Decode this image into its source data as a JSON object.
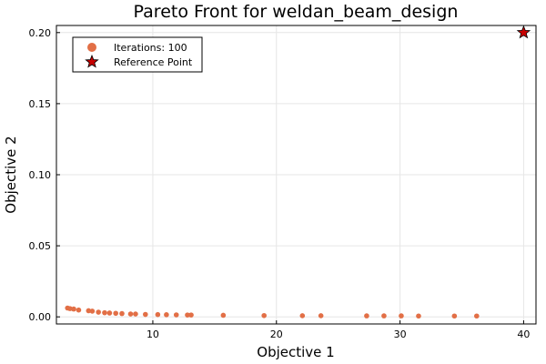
{
  "chart_data": {
    "type": "scatter",
    "title": "Pareto Front for weldan_beam_design",
    "xlabel": "Objective 1",
    "ylabel": "Objective 2",
    "xlim": [
      2.2,
      41.0
    ],
    "ylim": [
      -0.005,
      0.205
    ],
    "xticks": [
      10,
      20,
      30,
      40
    ],
    "xtick_labels": [
      "10",
      "20",
      "30",
      "40"
    ],
    "yticks": [
      0.0,
      0.05,
      0.1,
      0.15,
      0.2
    ],
    "ytick_labels": [
      "0.00",
      "0.05",
      "0.10",
      "0.15",
      "0.20"
    ],
    "grid": true,
    "legend_position": "top-left",
    "series": [
      {
        "name": "Iterations: 100",
        "marker": "circle",
        "color": "#e26f46",
        "points": [
          [
            3.1,
            0.0062
          ],
          [
            3.3,
            0.0058
          ],
          [
            3.6,
            0.0055
          ],
          [
            4.0,
            0.0048
          ],
          [
            4.8,
            0.0043
          ],
          [
            5.1,
            0.004
          ],
          [
            5.6,
            0.0033
          ],
          [
            6.1,
            0.0029
          ],
          [
            6.5,
            0.0027
          ],
          [
            7.0,
            0.0025
          ],
          [
            7.5,
            0.0023
          ],
          [
            8.2,
            0.002
          ],
          [
            8.6,
            0.002
          ],
          [
            9.4,
            0.0017
          ],
          [
            10.4,
            0.0016
          ],
          [
            11.1,
            0.0015
          ],
          [
            11.9,
            0.0014
          ],
          [
            12.8,
            0.0013
          ],
          [
            13.1,
            0.0013
          ],
          [
            15.7,
            0.0011
          ],
          [
            19.0,
            0.0009
          ],
          [
            22.1,
            0.0008
          ],
          [
            23.6,
            0.0008
          ],
          [
            27.3,
            0.0007
          ],
          [
            28.7,
            0.0007
          ],
          [
            30.1,
            0.0007
          ],
          [
            31.5,
            0.0006
          ],
          [
            34.4,
            0.0006
          ],
          [
            36.2,
            0.0006
          ]
        ]
      },
      {
        "name": "Reference Point",
        "marker": "star",
        "color": "#c80000",
        "points": [
          [
            40.0,
            0.2
          ]
        ]
      }
    ]
  }
}
